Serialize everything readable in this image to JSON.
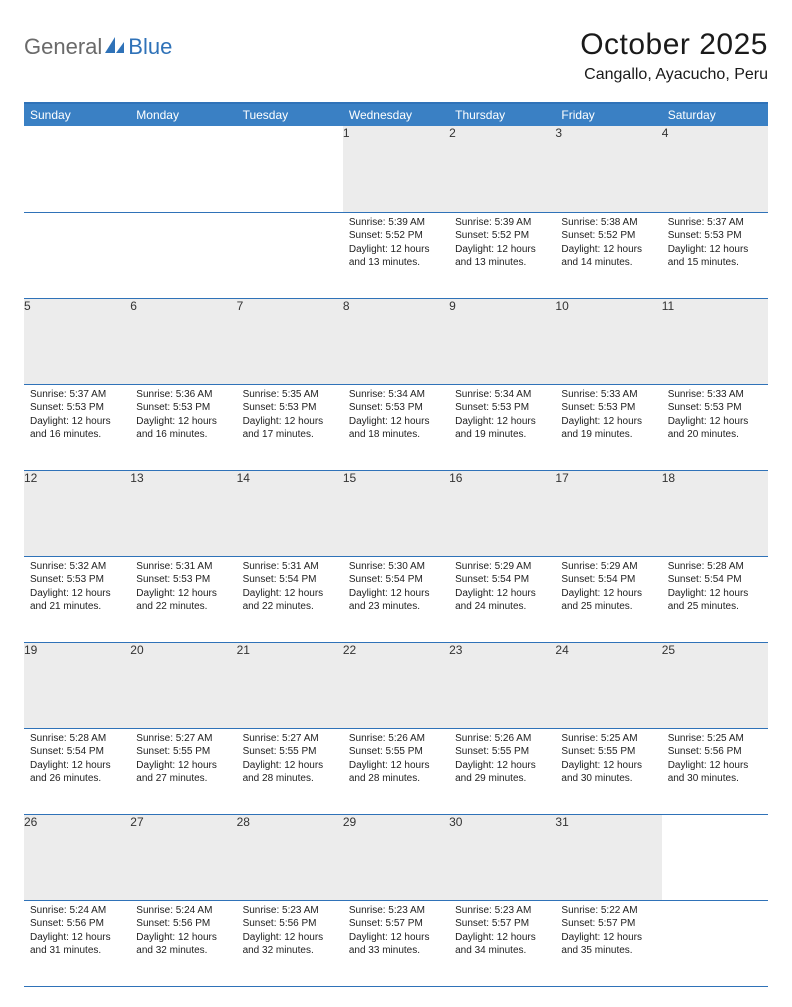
{
  "logo": {
    "word1": "General",
    "word2": "Blue"
  },
  "title": "October 2025",
  "location": "Cangallo, Ayacucho, Peru",
  "colors": {
    "header_bg": "#3a80c4",
    "rule": "#2f72b8",
    "daynum_bg": "#ececec",
    "logo_gray": "#6a6a6a",
    "logo_blue": "#2f72b8"
  },
  "day_headers": [
    "Sunday",
    "Monday",
    "Tuesday",
    "Wednesday",
    "Thursday",
    "Friday",
    "Saturday"
  ],
  "weeks": [
    {
      "nums": [
        "",
        "",
        "",
        "1",
        "2",
        "3",
        "4"
      ],
      "cells": [
        null,
        null,
        null,
        {
          "sunrise": "5:39 AM",
          "sunset": "5:52 PM",
          "daylight": "12 hours and 13 minutes."
        },
        {
          "sunrise": "5:39 AM",
          "sunset": "5:52 PM",
          "daylight": "12 hours and 13 minutes."
        },
        {
          "sunrise": "5:38 AM",
          "sunset": "5:52 PM",
          "daylight": "12 hours and 14 minutes."
        },
        {
          "sunrise": "5:37 AM",
          "sunset": "5:53 PM",
          "daylight": "12 hours and 15 minutes."
        }
      ]
    },
    {
      "nums": [
        "5",
        "6",
        "7",
        "8",
        "9",
        "10",
        "11"
      ],
      "cells": [
        {
          "sunrise": "5:37 AM",
          "sunset": "5:53 PM",
          "daylight": "12 hours and 16 minutes."
        },
        {
          "sunrise": "5:36 AM",
          "sunset": "5:53 PM",
          "daylight": "12 hours and 16 minutes."
        },
        {
          "sunrise": "5:35 AM",
          "sunset": "5:53 PM",
          "daylight": "12 hours and 17 minutes."
        },
        {
          "sunrise": "5:34 AM",
          "sunset": "5:53 PM",
          "daylight": "12 hours and 18 minutes."
        },
        {
          "sunrise": "5:34 AM",
          "sunset": "5:53 PM",
          "daylight": "12 hours and 19 minutes."
        },
        {
          "sunrise": "5:33 AM",
          "sunset": "5:53 PM",
          "daylight": "12 hours and 19 minutes."
        },
        {
          "sunrise": "5:33 AM",
          "sunset": "5:53 PM",
          "daylight": "12 hours and 20 minutes."
        }
      ]
    },
    {
      "nums": [
        "12",
        "13",
        "14",
        "15",
        "16",
        "17",
        "18"
      ],
      "cells": [
        {
          "sunrise": "5:32 AM",
          "sunset": "5:53 PM",
          "daylight": "12 hours and 21 minutes."
        },
        {
          "sunrise": "5:31 AM",
          "sunset": "5:53 PM",
          "daylight": "12 hours and 22 minutes."
        },
        {
          "sunrise": "5:31 AM",
          "sunset": "5:54 PM",
          "daylight": "12 hours and 22 minutes."
        },
        {
          "sunrise": "5:30 AM",
          "sunset": "5:54 PM",
          "daylight": "12 hours and 23 minutes."
        },
        {
          "sunrise": "5:29 AM",
          "sunset": "5:54 PM",
          "daylight": "12 hours and 24 minutes."
        },
        {
          "sunrise": "5:29 AM",
          "sunset": "5:54 PM",
          "daylight": "12 hours and 25 minutes."
        },
        {
          "sunrise": "5:28 AM",
          "sunset": "5:54 PM",
          "daylight": "12 hours and 25 minutes."
        }
      ]
    },
    {
      "nums": [
        "19",
        "20",
        "21",
        "22",
        "23",
        "24",
        "25"
      ],
      "cells": [
        {
          "sunrise": "5:28 AM",
          "sunset": "5:54 PM",
          "daylight": "12 hours and 26 minutes."
        },
        {
          "sunrise": "5:27 AM",
          "sunset": "5:55 PM",
          "daylight": "12 hours and 27 minutes."
        },
        {
          "sunrise": "5:27 AM",
          "sunset": "5:55 PM",
          "daylight": "12 hours and 28 minutes."
        },
        {
          "sunrise": "5:26 AM",
          "sunset": "5:55 PM",
          "daylight": "12 hours and 28 minutes."
        },
        {
          "sunrise": "5:26 AM",
          "sunset": "5:55 PM",
          "daylight": "12 hours and 29 minutes."
        },
        {
          "sunrise": "5:25 AM",
          "sunset": "5:55 PM",
          "daylight": "12 hours and 30 minutes."
        },
        {
          "sunrise": "5:25 AM",
          "sunset": "5:56 PM",
          "daylight": "12 hours and 30 minutes."
        }
      ]
    },
    {
      "nums": [
        "26",
        "27",
        "28",
        "29",
        "30",
        "31",
        ""
      ],
      "cells": [
        {
          "sunrise": "5:24 AM",
          "sunset": "5:56 PM",
          "daylight": "12 hours and 31 minutes."
        },
        {
          "sunrise": "5:24 AM",
          "sunset": "5:56 PM",
          "daylight": "12 hours and 32 minutes."
        },
        {
          "sunrise": "5:23 AM",
          "sunset": "5:56 PM",
          "daylight": "12 hours and 32 minutes."
        },
        {
          "sunrise": "5:23 AM",
          "sunset": "5:57 PM",
          "daylight": "12 hours and 33 minutes."
        },
        {
          "sunrise": "5:23 AM",
          "sunset": "5:57 PM",
          "daylight": "12 hours and 34 minutes."
        },
        {
          "sunrise": "5:22 AM",
          "sunset": "5:57 PM",
          "daylight": "12 hours and 35 minutes."
        },
        null
      ]
    }
  ],
  "labels": {
    "sunrise": "Sunrise:",
    "sunset": "Sunset:",
    "daylight": "Daylight:"
  }
}
